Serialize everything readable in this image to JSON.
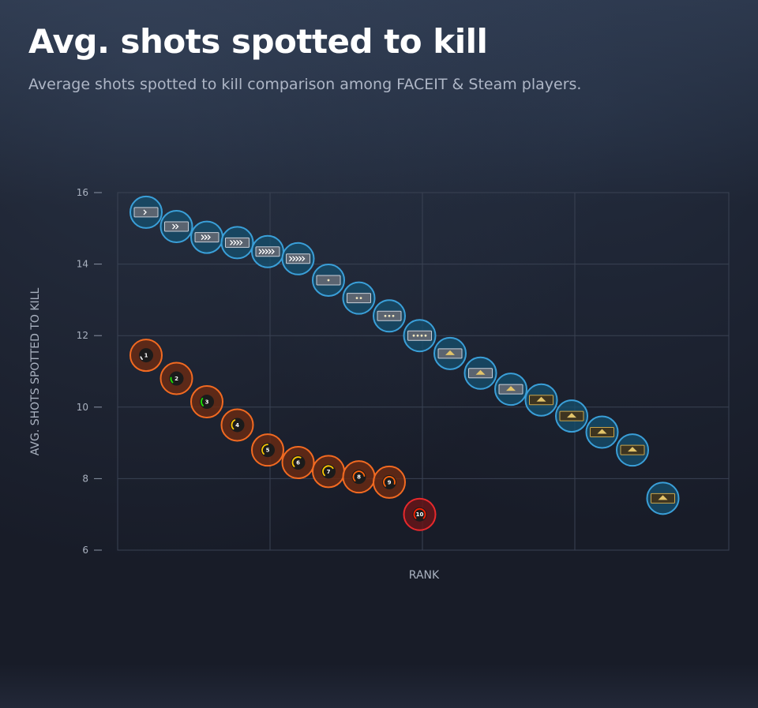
{
  "header": {
    "title": "Avg. shots spotted to kill",
    "subtitle": "Average shots spotted to kill comparison among FACEIT & Steam players."
  },
  "colors": {
    "steam": "#3a9fd8",
    "faceit": "#f26a21",
    "faceit_top": "#e8292c",
    "grid": "#3a4253",
    "background": "#181c28"
  },
  "chart_data": {
    "type": "scatter",
    "xlabel": "RANK",
    "ylabel": "AVG. SHOTS SPOTTED TO KILL",
    "ylim": [
      6,
      16
    ],
    "yticks": [
      "6",
      "8",
      "10",
      "12",
      "14",
      "16"
    ],
    "grid": true,
    "series": [
      {
        "key": "steam",
        "marker_icon": "cs-rank-badge-icon",
        "points": [
          {
            "x": 1,
            "y": 15.45
          },
          {
            "x": 2,
            "y": 15.05
          },
          {
            "x": 3,
            "y": 14.75
          },
          {
            "x": 4,
            "y": 14.6
          },
          {
            "x": 5,
            "y": 14.35
          },
          {
            "x": 6,
            "y": 14.15
          },
          {
            "x": 7,
            "y": 13.55
          },
          {
            "x": 8,
            "y": 13.05
          },
          {
            "x": 9,
            "y": 12.55
          },
          {
            "x": 10,
            "y": 12.0
          },
          {
            "x": 11,
            "y": 11.5
          },
          {
            "x": 12,
            "y": 10.95
          },
          {
            "x": 13,
            "y": 10.5
          },
          {
            "x": 14,
            "y": 10.2
          },
          {
            "x": 15,
            "y": 9.75
          },
          {
            "x": 16,
            "y": 9.3
          },
          {
            "x": 17,
            "y": 8.8
          },
          {
            "x": 18,
            "y": 7.45
          }
        ]
      },
      {
        "key": "faceit",
        "marker_icon": "faceit-level-icon",
        "points": [
          {
            "x": 1,
            "y": 11.45,
            "label": "1"
          },
          {
            "x": 2,
            "y": 10.8,
            "label": "2"
          },
          {
            "x": 3,
            "y": 10.15,
            "label": "3"
          },
          {
            "x": 4,
            "y": 9.5,
            "label": "4"
          },
          {
            "x": 5,
            "y": 8.8,
            "label": "5"
          },
          {
            "x": 6,
            "y": 8.45,
            "label": "6"
          },
          {
            "x": 7,
            "y": 8.2,
            "label": "7"
          },
          {
            "x": 8,
            "y": 8.05,
            "label": "8"
          },
          {
            "x": 9,
            "y": 7.9,
            "label": "9"
          },
          {
            "x": 10,
            "y": 7.0,
            "label": "10"
          }
        ]
      }
    ]
  }
}
